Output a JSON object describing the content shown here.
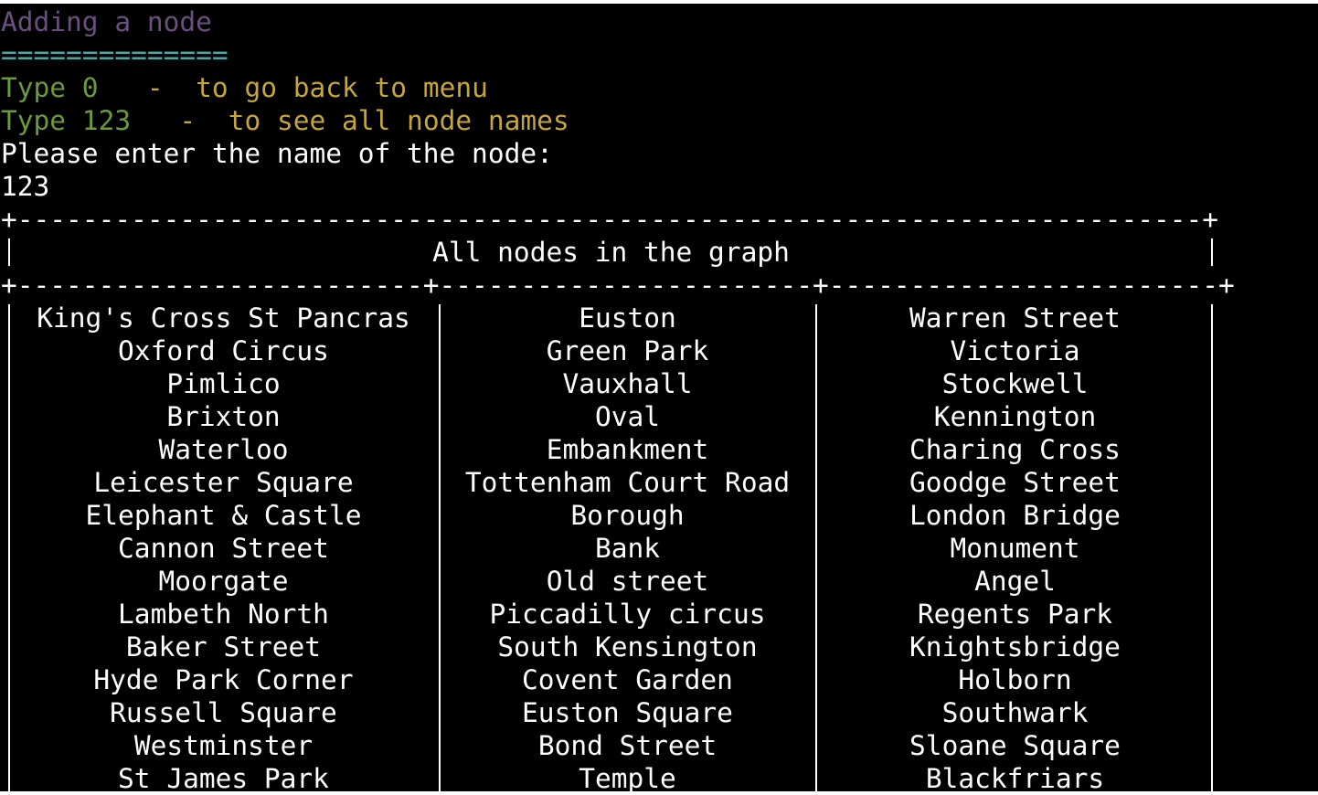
{
  "colors": {
    "background": "#000000",
    "text": "#ffffff",
    "title": "#6a5080",
    "separator": "#4aa6a8",
    "type_label": "#6a9a3a",
    "hint_text": "#c4a63c"
  },
  "header": {
    "title": "Adding a node",
    "separator": "=============="
  },
  "hints": [
    {
      "type": "Type 0",
      "dash": "-",
      "text": "to go back to menu"
    },
    {
      "type": "Type 123",
      "dash": "-",
      "text": "to see all node names"
    }
  ],
  "prompt": "Please enter the name of the node:",
  "input_value": "123",
  "table": {
    "border_top": "+-------------------------------------------------------------------------+",
    "title": "All nodes in the graph",
    "border_mid": "+-------------------------+-----------------------+------------------------+",
    "rows": [
      [
        "King's Cross St Pancras",
        "Euston",
        "Warren Street"
      ],
      [
        "Oxford Circus",
        "Green Park",
        "Victoria"
      ],
      [
        "Pimlico",
        "Vauxhall",
        "Stockwell"
      ],
      [
        "Brixton",
        "Oval",
        "Kennington"
      ],
      [
        "Waterloo",
        "Embankment",
        "Charing Cross"
      ],
      [
        "Leicester Square",
        "Tottenham Court Road",
        "Goodge Street"
      ],
      [
        "Elephant & Castle",
        "Borough",
        "London Bridge"
      ],
      [
        "Cannon Street",
        "Bank",
        "Monument"
      ],
      [
        "Moorgate",
        "Old street",
        "Angel"
      ],
      [
        "Lambeth North",
        "Piccadilly circus",
        "Regents Park"
      ],
      [
        "Baker Street",
        "South Kensington",
        "Knightsbridge"
      ],
      [
        "Hyde Park Corner",
        "Covent Garden",
        "Holborn"
      ],
      [
        "Russell Square",
        "Euston Square",
        "Southwark"
      ],
      [
        "Westminster",
        "Bond Street",
        "Sloane Square"
      ],
      [
        "St James Park",
        "Temple",
        "Blackfriars"
      ]
    ]
  }
}
